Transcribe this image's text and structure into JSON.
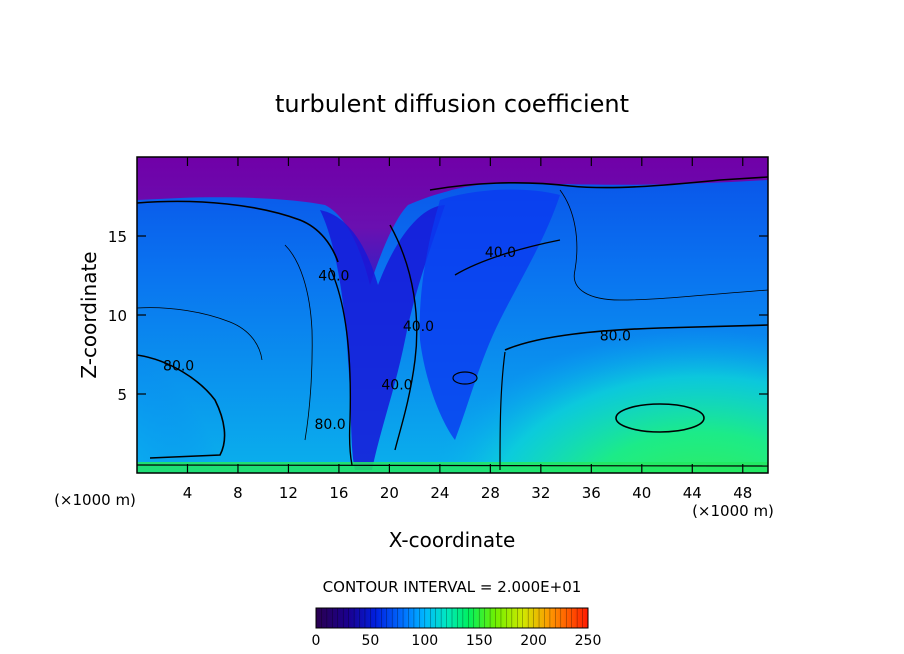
{
  "chart_data": {
    "type": "heatmap",
    "title": "turbulent diffusion coefficient",
    "xlabel": "X-coordinate",
    "ylabel": "Z-coordinate",
    "x_unit": "(×1000 m)",
    "x_unit_right": "(×1000 m)",
    "xlim": [
      0,
      50
    ],
    "ylim": [
      0,
      20
    ],
    "x_ticks": [
      4,
      8,
      12,
      16,
      20,
      24,
      28,
      32,
      36,
      40,
      44,
      48
    ],
    "y_ticks": [
      5,
      10,
      15
    ],
    "contour_interval_text": "CONTOUR INTERVAL = 2.000E+01",
    "contour_labels": [
      {
        "text": "40.0",
        "x": 15.6,
        "y": 12.5
      },
      {
        "text": "40.0",
        "x": 28.8,
        "y": 14.0
      },
      {
        "text": "40.0",
        "x": 22.3,
        "y": 9.3
      },
      {
        "text": "40.0",
        "x": 20.6,
        "y": 5.6
      },
      {
        "text": "80.0",
        "x": 3.3,
        "y": 6.8
      },
      {
        "text": "80.0",
        "x": 37.9,
        "y": 8.7
      },
      {
        "text": "80.0",
        "x": 15.3,
        "y": 3.1
      }
    ],
    "colorbar": {
      "min": 0,
      "max": 250,
      "tick_labels": [
        "0",
        "50",
        "100",
        "150",
        "200",
        "250"
      ],
      "colors": [
        "#2a0050",
        "#230080",
        "#0008c8",
        "#0055ff",
        "#00a6ff",
        "#00e2d8",
        "#00f07a",
        "#3cf000",
        "#96f000",
        "#ffe000",
        "#ff8a00",
        "#ff2200"
      ]
    },
    "grid": false,
    "legend": "colorbar-bottom"
  }
}
